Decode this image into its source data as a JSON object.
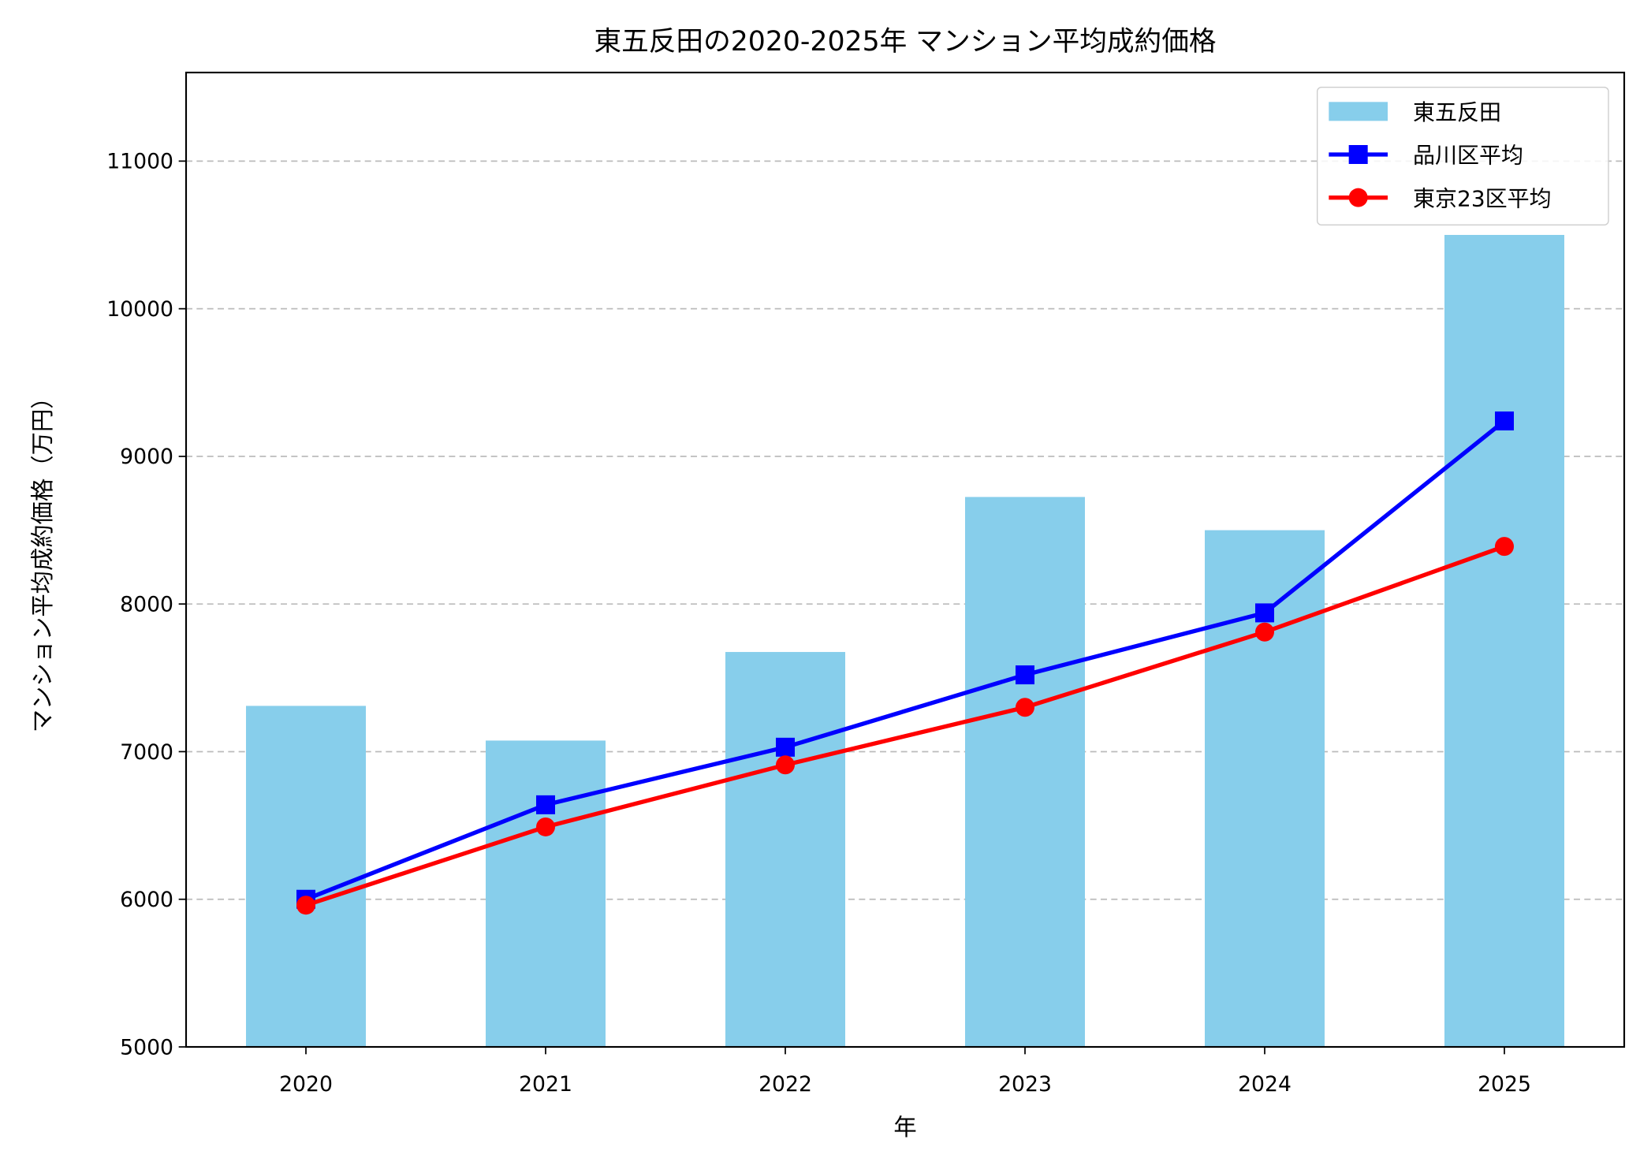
{
  "chart_data": {
    "type": "bar+line",
    "title": "東五反田の2020-2025年 マンション平均成約価格",
    "xlabel": "年",
    "ylabel": "マンション平均成約価格（万円）",
    "categories": [
      "2020",
      "2021",
      "2022",
      "2023",
      "2024",
      "2025"
    ],
    "ylim": [
      5000,
      11600
    ],
    "yticks": [
      5000,
      6000,
      7000,
      8000,
      9000,
      10000,
      11000
    ],
    "grid": "y-dashed",
    "legend_position": "top-right",
    "series": [
      {
        "name": "東五反田",
        "kind": "bar",
        "color": "#87CEEB",
        "values": [
          7310,
          7075,
          7675,
          8725,
          8500,
          10500
        ]
      },
      {
        "name": "品川区平均",
        "kind": "line",
        "marker": "square",
        "color": "#0000FF",
        "values": [
          6000,
          6640,
          7030,
          7520,
          7940,
          9240
        ]
      },
      {
        "name": "東京23区平均",
        "kind": "line",
        "marker": "circle",
        "color": "#FF0000",
        "values": [
          5960,
          6490,
          6910,
          7300,
          7810,
          8390
        ]
      }
    ]
  }
}
